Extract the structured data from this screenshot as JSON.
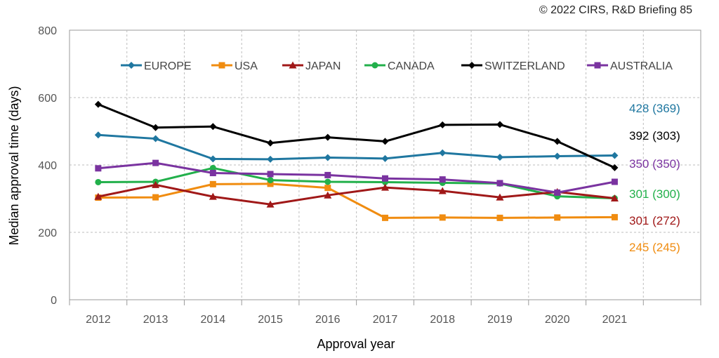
{
  "copyright": "© 2022 CIRS, R&D Briefing 85",
  "chart_data": {
    "type": "line",
    "xlabel": "Approval year",
    "ylabel": "Median approval time (days)",
    "ylim": [
      0,
      800
    ],
    "yticks": [
      0,
      200,
      400,
      600,
      800
    ],
    "x": [
      "2012",
      "2013",
      "2014",
      "2015",
      "2016",
      "2017",
      "2018",
      "2019",
      "2020",
      "2021"
    ],
    "grid": "on",
    "legend_position": "top",
    "series": [
      {
        "name": "EUROPE",
        "color": "#1f77a0",
        "marker": "diamond",
        "values": [
          489,
          478,
          418,
          417,
          422,
          419,
          436,
          423,
          426,
          428
        ],
        "annotation": "428 (369)"
      },
      {
        "name": "USA",
        "color": "#f08c10",
        "marker": "square",
        "values": [
          303,
          304,
          343,
          344,
          332,
          243,
          244,
          243,
          244,
          245
        ],
        "annotation": "245 (245)"
      },
      {
        "name": "JAPAN",
        "color": "#a01818",
        "marker": "triangle",
        "values": [
          306,
          341,
          306,
          283,
          310,
          333,
          323,
          304,
          320,
          301
        ],
        "annotation": "301 (272)"
      },
      {
        "name": "CANADA",
        "color": "#22b04b",
        "marker": "circle",
        "values": [
          349,
          350,
          391,
          355,
          350,
          349,
          347,
          345,
          307,
          301
        ],
        "annotation": "301 (300)"
      },
      {
        "name": "SWITZERLAND",
        "color": "#000000",
        "marker": "diamond",
        "values": [
          580,
          511,
          514,
          465,
          482,
          470,
          519,
          520,
          470,
          392
        ],
        "annotation": "392 (303)"
      },
      {
        "name": "AUSTRALIA",
        "color": "#7a33a0",
        "marker": "square",
        "values": [
          390,
          406,
          376,
          373,
          370,
          360,
          357,
          346,
          318,
          350
        ],
        "annotation": "350 (350)"
      }
    ]
  }
}
